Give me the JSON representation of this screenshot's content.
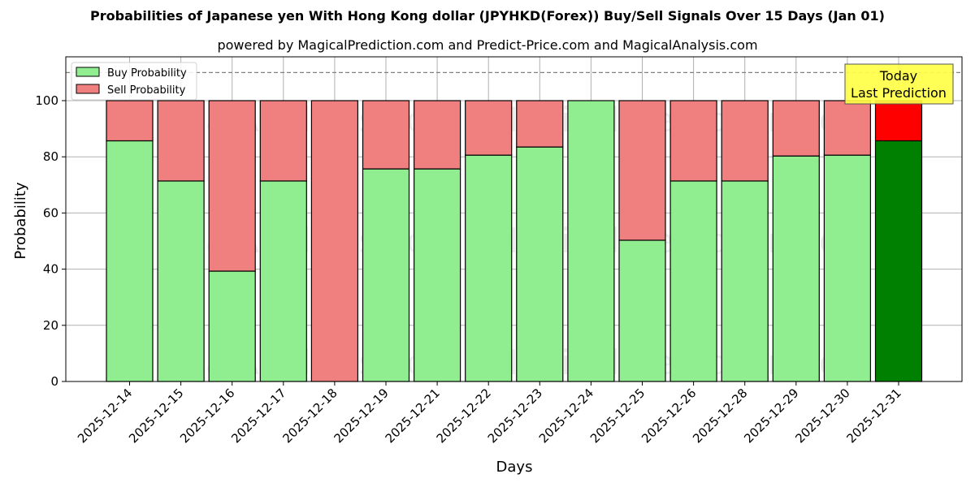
{
  "header": {
    "title": "Probabilities of Japanese yen With Hong Kong dollar (JPYHKD(Forex)) Buy/Sell Signals Over 15 Days (Jan 01)",
    "subtitle": "powered by MagicalPrediction.com and Predict-Price.com and MagicalAnalysis.com"
  },
  "legend": {
    "buy_label": "Buy Probability",
    "sell_label": "Sell Probability"
  },
  "annotation": {
    "line1": "Today",
    "line2": "Last Prediction"
  },
  "watermarks": [
    "MagicalAnalysis.com",
    "MagicalPrediction.com"
  ],
  "colors": {
    "buy": "#90ee90",
    "sell": "#f08080",
    "today_buy": "#008000",
    "today_sell": "#ff0000",
    "annotation_bg": "#ffff44"
  },
  "chart_data": {
    "type": "bar",
    "stacked": true,
    "title": "Probabilities of Japanese yen With Hong Kong dollar (JPYHKD(Forex)) Buy/Sell Signals Over 15 Days (Jan 01)",
    "subtitle": "powered by MagicalPrediction.com and Predict-Price.com and MagicalAnalysis.com",
    "xlabel": "Days",
    "ylabel": "Probability",
    "ylim": [
      0,
      115
    ],
    "yticks": [
      0,
      20,
      40,
      60,
      80,
      100
    ],
    "grid": true,
    "legend_position": "upper left",
    "reference_line": {
      "y": 110,
      "style": "dashed"
    },
    "categories": [
      "2025-12-14",
      "2025-12-15",
      "2025-12-16",
      "2025-12-17",
      "2025-12-18",
      "2025-12-19",
      "2025-12-21",
      "2025-12-22",
      "2025-12-23",
      "2025-12-24",
      "2025-12-25",
      "2025-12-26",
      "2025-12-28",
      "2025-12-29",
      "2025-12-30",
      "2025-12-31"
    ],
    "series": [
      {
        "name": "Buy Probability",
        "values": [
          85.7,
          71.4,
          39.3,
          71.4,
          0,
          75.7,
          75.7,
          80.6,
          83.5,
          100,
          50.3,
          71.4,
          71.4,
          80.3,
          80.6,
          85.7
        ]
      },
      {
        "name": "Sell Probability",
        "values": [
          14.3,
          28.6,
          60.7,
          28.6,
          100,
          24.3,
          24.3,
          19.4,
          16.5,
          0,
          49.7,
          28.6,
          28.6,
          19.7,
          19.4,
          14.3
        ]
      }
    ],
    "highlight_last": {
      "label": "Today\nLast Prediction"
    }
  }
}
